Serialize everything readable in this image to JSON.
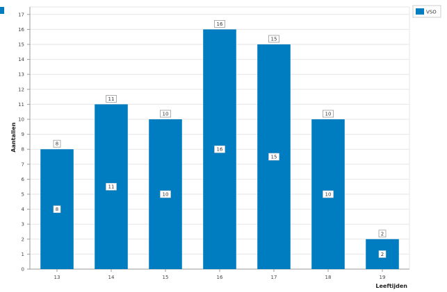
{
  "chart_data": {
    "type": "bar",
    "categories": [
      "13",
      "14",
      "15",
      "16",
      "17",
      "18",
      "19"
    ],
    "series": [
      {
        "name": "VSO",
        "values": [
          8,
          11,
          10,
          16,
          15,
          10,
          2
        ],
        "color": "#007dc1"
      }
    ],
    "xlabel": "Leeftijden",
    "ylabel": "Aantallen",
    "ylim": [
      0,
      17.5
    ],
    "yticks": [
      0,
      1,
      2,
      3,
      4,
      5,
      6,
      7,
      8,
      9,
      10,
      11,
      12,
      13,
      14,
      15,
      16,
      17
    ],
    "grid": true,
    "legend_position": "top-right",
    "data_labels": "top and center"
  },
  "colors": {
    "bar": "#007dc1",
    "grid": "#e6e6e6",
    "axis": "#999999"
  }
}
